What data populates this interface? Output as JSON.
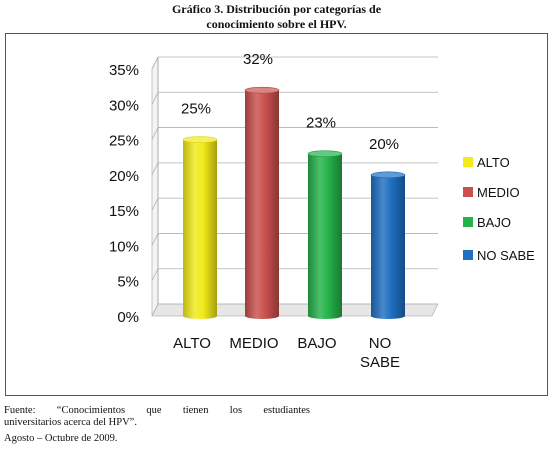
{
  "title_line1": "Gráfico 3. Distribución por categorías de",
  "title_line2": "conocimiento sobre el HPV.",
  "source_line1": "Fuente:   “Conocimientos   que   tienen   los   estudiantes",
  "source_line2": "universitarios acerca del HPV”.",
  "source_line3": "Agosto – Octubre de 2009.",
  "chart_data": {
    "type": "bar",
    "title": "Gráfico 3. Distribución por categorías de conocimiento sobre el HPV.",
    "categories": [
      "ALTO",
      "MEDIO",
      "BAJO",
      "NO SABE"
    ],
    "values": [
      25,
      32,
      23,
      20
    ],
    "value_labels": [
      "25%",
      "32%",
      "23%",
      "20%"
    ],
    "y_ticks": [
      "0%",
      "5%",
      "10%",
      "15%",
      "20%",
      "25%",
      "30%",
      "35%"
    ],
    "ylim": [
      0,
      35
    ],
    "grid": true,
    "bar_style": "3d-cylinder",
    "colors": [
      "#f2ea1a",
      "#c9504d",
      "#25b24a",
      "#1f6fc1"
    ],
    "legend": {
      "position": "right",
      "entries": [
        "ALTO",
        "MEDIO",
        "BAJO",
        "NO SABE"
      ]
    }
  }
}
